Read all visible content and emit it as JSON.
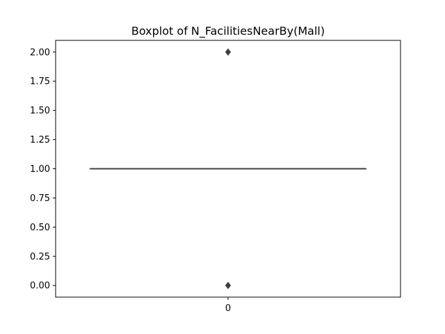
{
  "chart_data": {
    "type": "boxplot",
    "title": "Boxplot of N_FacilitiesNearBy(Mall)",
    "xlabel": "",
    "ylabel": "",
    "categories": [
      "0"
    ],
    "ylim": [
      -0.1,
      2.1
    ],
    "y_ticks": [
      {
        "value": 0.0,
        "label": "0.00"
      },
      {
        "value": 0.25,
        "label": "0.25"
      },
      {
        "value": 0.5,
        "label": "0.50"
      },
      {
        "value": 0.75,
        "label": "0.75"
      },
      {
        "value": 1.0,
        "label": "1.00"
      },
      {
        "value": 1.25,
        "label": "1.25"
      },
      {
        "value": 1.5,
        "label": "1.50"
      },
      {
        "value": 1.75,
        "label": "1.75"
      },
      {
        "value": 2.0,
        "label": "2.00"
      }
    ],
    "boxes": [
      {
        "category": "0",
        "q1": 1.0,
        "median": 1.0,
        "q3": 1.0,
        "whisker_low": 1.0,
        "whisker_high": 1.0,
        "outliers": [
          0.0,
          2.0
        ]
      }
    ],
    "grid": false,
    "colors": {
      "box_edge": "#3f3f3f",
      "outlier": "#3f3f3f",
      "axes": "#000000"
    }
  }
}
